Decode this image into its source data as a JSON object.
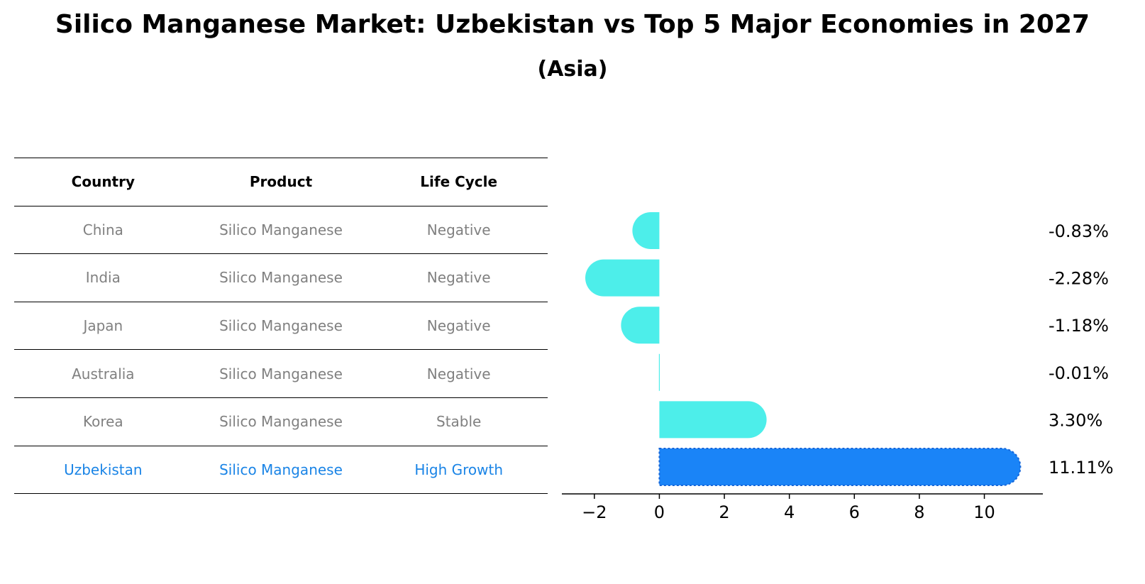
{
  "title": "Silico Manganese Market: Uzbekistan vs Top 5 Major Economies in 2027",
  "subtitle": "(Asia)",
  "table": {
    "headers": [
      "Country",
      "Product",
      "Life Cycle"
    ],
    "rows": [
      [
        "China",
        "Silico Manganese",
        "Negative"
      ],
      [
        "India",
        "Silico Manganese",
        "Negative"
      ],
      [
        "Japan",
        "Silico Manganese",
        "Negative"
      ],
      [
        "Australia",
        "Silico Manganese",
        "Negative"
      ],
      [
        "Korea",
        "Silico Manganese",
        "Stable"
      ],
      [
        "Uzbekistan",
        "Silico Manganese",
        "High Growth"
      ]
    ]
  },
  "chart_data": {
    "type": "bar",
    "orientation": "horizontal",
    "categories": [
      "China",
      "India",
      "Japan",
      "Australia",
      "Korea",
      "Uzbekistan"
    ],
    "values": [
      -0.83,
      -2.28,
      -1.18,
      -0.01,
      3.3,
      11.11
    ],
    "value_labels": [
      "-0.83%",
      "-2.28%",
      "-1.18%",
      "-0.01%",
      "3.30%",
      "11.11%"
    ],
    "xlim": [
      -3.0,
      11.8
    ],
    "xticks": [
      -2,
      0,
      2,
      4,
      6,
      8,
      10
    ],
    "xtick_labels": [
      "−2",
      "0",
      "2",
      "4",
      "6",
      "8",
      "10"
    ],
    "grid": false,
    "colors": {
      "default": "#4deeea",
      "highlight": "#1a84f7",
      "highlight_text": "#1a84e6"
    },
    "highlight_index": 5
  }
}
